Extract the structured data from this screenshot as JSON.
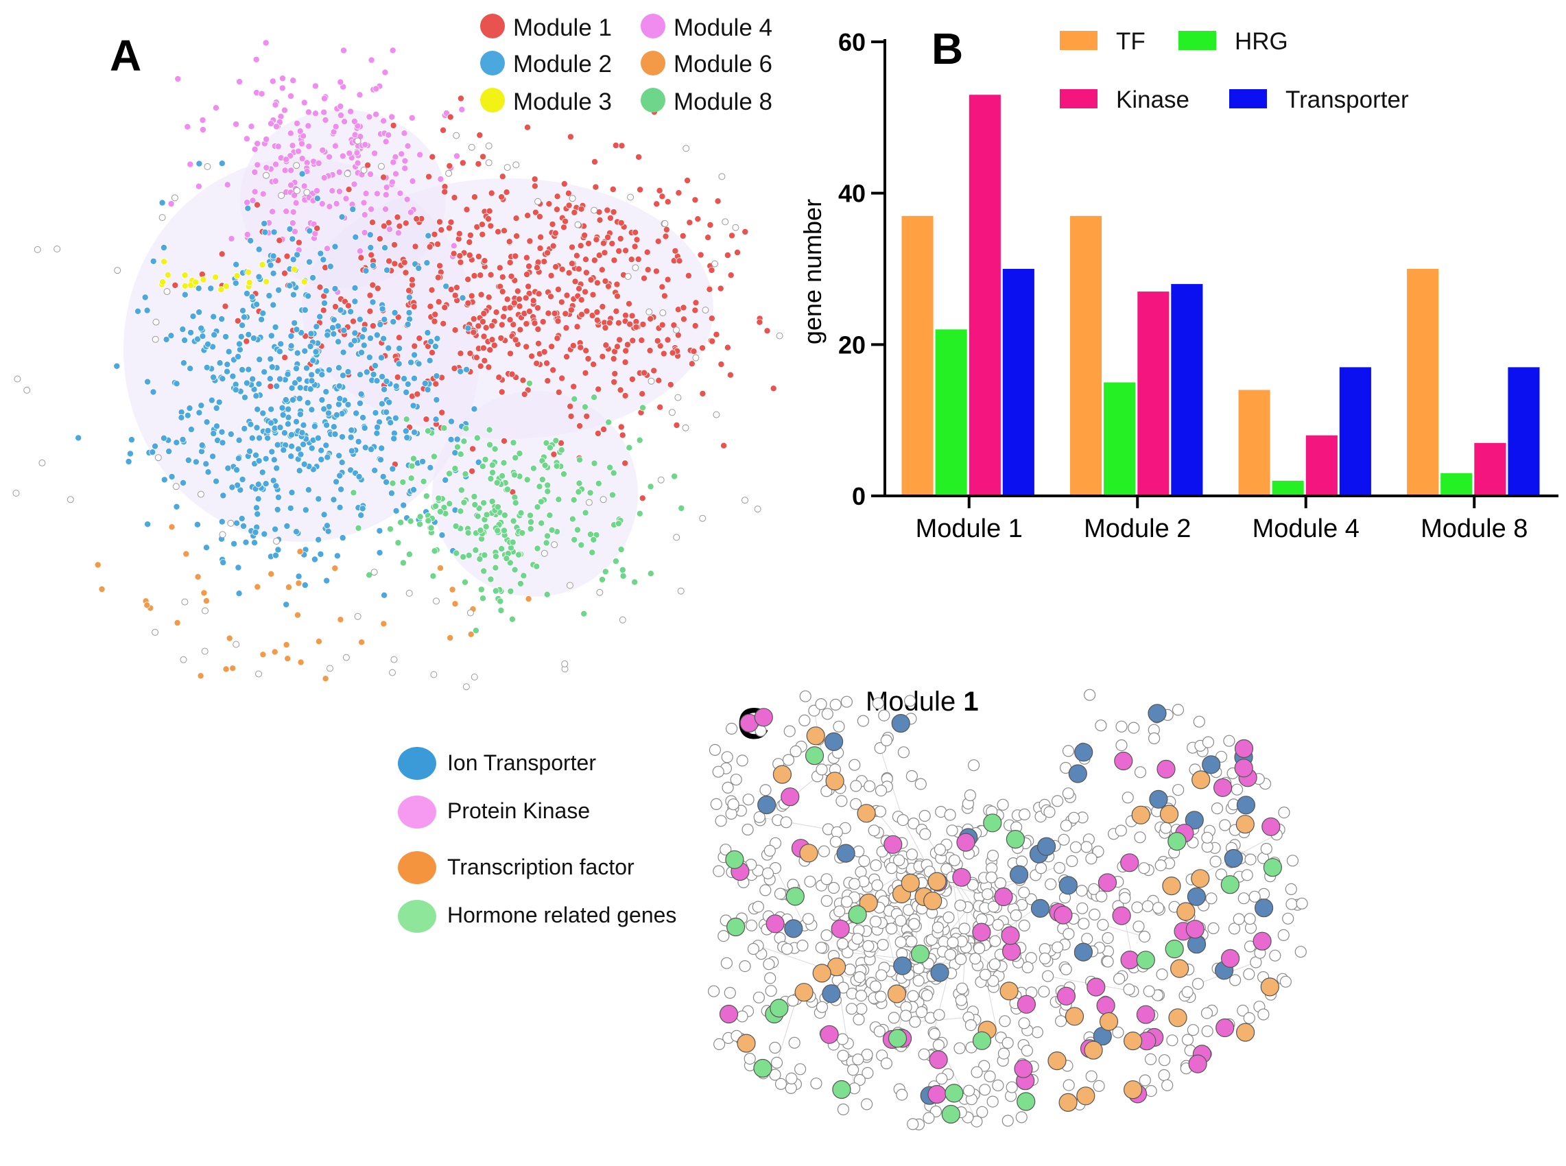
{
  "panels": {
    "a": {
      "letter": "A"
    },
    "b": {
      "letter": "B"
    },
    "c": {
      "letter": "C",
      "title_prefix": "Module ",
      "title_bold": "1"
    }
  },
  "colors": {
    "module1": "#e8524f",
    "module2": "#4aa8df",
    "module3": "#f2f215",
    "module4": "#f08cf0",
    "module6": "#f29a48",
    "module8": "#6ed68a",
    "tf": "#ffa042",
    "hrg": "#24f024",
    "kinase": "#f5157f",
    "transporter": "#0a10f0",
    "ion_transporter": "#3b9ad8",
    "protein_kinase": "#f59af0",
    "transcription_factor": "#f4943e",
    "hormone_related": "#8ee69a",
    "c_transporter": "#5b86b8",
    "c_kinase": "#e86ad0",
    "c_tf": "#f3b26e",
    "c_hrg": "#7ee08e"
  },
  "module_legend": [
    {
      "label": "Module 1",
      "color_key": "module1"
    },
    {
      "label": "Module 2",
      "color_key": "module2"
    },
    {
      "label": "Module 3",
      "color_key": "module3"
    },
    {
      "label": "Module 4",
      "color_key": "module4"
    },
    {
      "label": "Module 6",
      "color_key": "module6"
    },
    {
      "label": "Module 8",
      "color_key": "module8"
    }
  ],
  "gene_legend": [
    {
      "label": "Ion Transporter",
      "color_key": "ion_transporter"
    },
    {
      "label": "Protein Kinase",
      "color_key": "protein_kinase"
    },
    {
      "label": "Transcription factor",
      "color_key": "transcription_factor"
    },
    {
      "label": "Hormone related genes",
      "color_key": "hormone_related"
    }
  ],
  "chart_data": {
    "type": "bar",
    "title": "",
    "xlabel": "",
    "ylabel": "gene number",
    "ylim": [
      0,
      60
    ],
    "yticks": [
      0,
      20,
      40,
      60
    ],
    "categories": [
      "Module 1",
      "Module 2",
      "Module 4",
      "Module 8"
    ],
    "series": [
      {
        "name": "TF",
        "color_key": "tf",
        "values": [
          37,
          37,
          14,
          30
        ]
      },
      {
        "name": "HRG",
        "color_key": "hrg",
        "values": [
          22,
          15,
          2,
          3
        ]
      },
      {
        "name": "Kinase",
        "color_key": "kinase",
        "values": [
          53,
          27,
          8,
          7
        ]
      },
      {
        "name": "Transporter",
        "color_key": "transporter",
        "values": [
          30,
          28,
          17,
          17
        ]
      }
    ],
    "legend_position": "top"
  }
}
